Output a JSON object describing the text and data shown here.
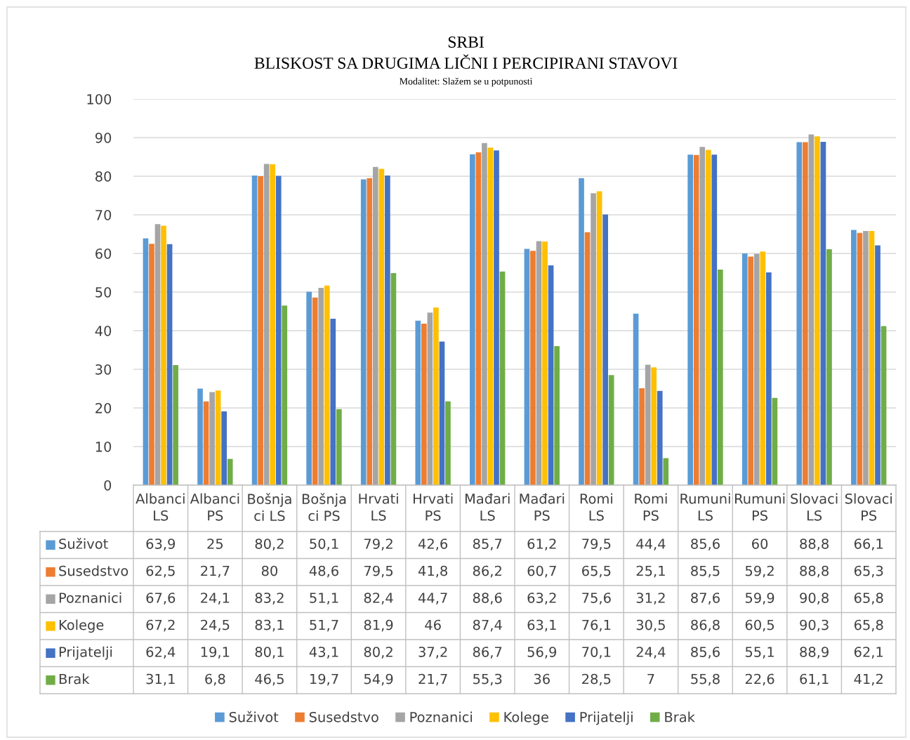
{
  "chart_data": {
    "type": "bar",
    "title": "SRBI\nBLISKOST SA DRUGIMA LIČNI I PERCIPIRANI STAVOVI",
    "subtitle": "Modalitet: Slažem se u potpunosti",
    "categories": [
      "Albanci LS",
      "Albanci PS",
      "Bošnjaci LS",
      "Bošnjaci PS",
      "Hrvati LS",
      "Hrvati PS",
      "Mađari LS",
      "Mađari PS",
      "Romi LS",
      "Romi PS",
      "Rumuni LS",
      "Rumuni PS",
      "Slovaci LS",
      "Slovaci PS"
    ],
    "series": [
      {
        "name": "Suživot",
        "color": "#5b9bd5",
        "values": [
          63.9,
          25,
          80.2,
          50.1,
          79.2,
          42.6,
          85.7,
          61.2,
          79.5,
          44.4,
          85.6,
          60,
          88.8,
          66.1
        ],
        "value_labels": [
          "63,9",
          "25",
          "80,2",
          "50,1",
          "79,2",
          "42,6",
          "85,7",
          "61,2",
          "79,5",
          "44,4",
          "85,6",
          "60",
          "88,8",
          "66,1"
        ]
      },
      {
        "name": "Susedstvo",
        "color": "#ed7d31",
        "values": [
          62.5,
          21.7,
          80,
          48.6,
          79.5,
          41.8,
          86.2,
          60.7,
          65.5,
          25.1,
          85.5,
          59.2,
          88.8,
          65.3
        ],
        "value_labels": [
          "62,5",
          "21,7",
          "80",
          "48,6",
          "79,5",
          "41,8",
          "86,2",
          "60,7",
          "65,5",
          "25,1",
          "85,5",
          "59,2",
          "88,8",
          "65,3"
        ]
      },
      {
        "name": "Poznanici",
        "color": "#a5a5a5",
        "values": [
          67.6,
          24.1,
          83.2,
          51.1,
          82.4,
          44.7,
          88.6,
          63.2,
          75.6,
          31.2,
          87.6,
          59.9,
          90.8,
          65.8
        ],
        "value_labels": [
          "67,6",
          "24,1",
          "83,2",
          "51,1",
          "82,4",
          "44,7",
          "88,6",
          "63,2",
          "75,6",
          "31,2",
          "87,6",
          "59,9",
          "90,8",
          "65,8"
        ]
      },
      {
        "name": "Kolege",
        "color": "#ffc000",
        "values": [
          67.2,
          24.5,
          83.1,
          51.7,
          81.9,
          46,
          87.4,
          63.1,
          76.1,
          30.5,
          86.8,
          60.5,
          90.3,
          65.8
        ],
        "value_labels": [
          "67,2",
          "24,5",
          "83,1",
          "51,7",
          "81,9",
          "46",
          "87,4",
          "63,1",
          "76,1",
          "30,5",
          "86,8",
          "60,5",
          "90,3",
          "65,8"
        ]
      },
      {
        "name": "Prijatelji",
        "color": "#4472c4",
        "values": [
          62.4,
          19.1,
          80.1,
          43.1,
          80.2,
          37.2,
          86.7,
          56.9,
          70.1,
          24.4,
          85.6,
          55.1,
          88.9,
          62.1
        ],
        "value_labels": [
          "62,4",
          "19,1",
          "80,1",
          "43,1",
          "80,2",
          "37,2",
          "86,7",
          "56,9",
          "70,1",
          "24,4",
          "85,6",
          "55,1",
          "88,9",
          "62,1"
        ]
      },
      {
        "name": "Brak",
        "color": "#70ad47",
        "values": [
          31.1,
          6.8,
          46.5,
          19.7,
          54.9,
          21.7,
          55.3,
          36,
          28.5,
          7,
          55.8,
          22.6,
          61.1,
          41.2
        ],
        "value_labels": [
          "31,1",
          "6,8",
          "46,5",
          "19,7",
          "54,9",
          "21,7",
          "55,3",
          "36",
          "28,5",
          "7",
          "55,8",
          "22,6",
          "61,1",
          "41,2"
        ]
      }
    ],
    "ylim": [
      0,
      100
    ],
    "yticks": [
      0,
      10,
      20,
      30,
      40,
      50,
      60,
      70,
      80,
      90,
      100
    ],
    "grid": "y",
    "legend": "bottom"
  }
}
